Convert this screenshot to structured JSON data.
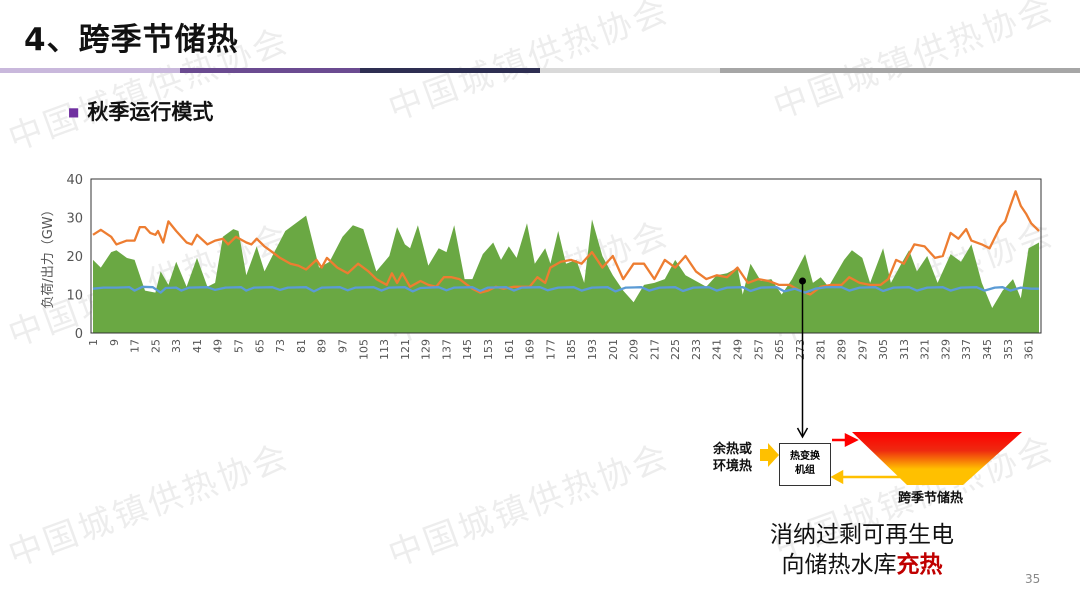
{
  "header": {
    "title": "4、跨季节储热",
    "subtitle": "秋季运行模式",
    "bullet_icon": "square-bullet-icon"
  },
  "watermark": "中国城镇供热协会",
  "colors": {
    "green": "#6aa843",
    "orange": "#ed7d31",
    "blue": "#5b9bd5",
    "accent_purple": "#7030a0",
    "highlight_red": "#c00000"
  },
  "chart_data": {
    "type": "area",
    "title": "",
    "xlabel": "",
    "ylabel": "负荷/出力（GW）",
    "ylim": [
      0,
      40
    ],
    "yticks": [
      0,
      10,
      20,
      30,
      40
    ],
    "xlim": [
      1,
      365
    ],
    "xticks": [
      1,
      9,
      17,
      25,
      33,
      41,
      49,
      57,
      65,
      73,
      81,
      89,
      97,
      105,
      113,
      121,
      129,
      137,
      145,
      153,
      161,
      169,
      177,
      185,
      193,
      201,
      209,
      217,
      225,
      233,
      241,
      249,
      257,
      265,
      273,
      281,
      289,
      297,
      305,
      313,
      321,
      329,
      337,
      345,
      353,
      361
    ],
    "grid": false,
    "series": [
      {
        "name": "green-area",
        "type": "area",
        "color": "#6aa843",
        "points": [
          [
            1,
            19
          ],
          [
            4,
            17
          ],
          [
            8,
            21
          ],
          [
            10,
            21.5
          ],
          [
            14,
            19.5
          ],
          [
            17,
            19
          ],
          [
            19,
            15
          ],
          [
            21,
            11
          ],
          [
            25,
            10.5
          ],
          [
            27,
            16
          ],
          [
            30,
            12.5
          ],
          [
            33,
            18.5
          ],
          [
            37,
            12
          ],
          [
            41,
            19.5
          ],
          [
            45,
            12
          ],
          [
            48,
            13
          ],
          [
            51,
            25
          ],
          [
            55,
            27
          ],
          [
            57,
            26.5
          ],
          [
            60,
            15
          ],
          [
            64,
            22.5
          ],
          [
            67,
            16
          ],
          [
            70,
            20
          ],
          [
            75,
            26.5
          ],
          [
            80,
            29
          ],
          [
            83,
            30.5
          ],
          [
            88,
            17
          ],
          [
            92,
            18.5
          ],
          [
            97,
            25
          ],
          [
            101,
            28
          ],
          [
            105,
            27
          ],
          [
            110,
            16
          ],
          [
            115,
            20
          ],
          [
            118,
            27.5
          ],
          [
            121,
            23
          ],
          [
            123,
            22
          ],
          [
            126,
            28
          ],
          [
            130,
            17.5
          ],
          [
            134,
            22
          ],
          [
            137,
            21
          ],
          [
            140,
            28
          ],
          [
            144,
            14
          ],
          [
            147,
            14
          ],
          [
            151,
            20.5
          ],
          [
            155,
            23.5
          ],
          [
            158,
            19
          ],
          [
            161,
            22.5
          ],
          [
            164,
            19.5
          ],
          [
            168,
            28.5
          ],
          [
            171,
            18
          ],
          [
            175,
            22
          ],
          [
            177,
            18
          ],
          [
            180,
            26.5
          ],
          [
            183,
            18
          ],
          [
            187,
            19
          ],
          [
            190,
            13
          ],
          [
            193,
            29.5
          ],
          [
            197,
            20
          ],
          [
            201,
            15
          ],
          [
            205,
            11
          ],
          [
            209,
            8
          ],
          [
            213,
            12.5
          ],
          [
            217,
            13
          ],
          [
            221,
            14
          ],
          [
            225,
            19
          ],
          [
            229,
            15
          ],
          [
            233,
            13.5
          ],
          [
            237,
            12
          ],
          [
            241,
            15
          ],
          [
            245,
            15.5
          ],
          [
            249,
            17
          ],
          [
            251,
            10
          ],
          [
            254,
            18
          ],
          [
            258,
            13.5
          ],
          [
            262,
            14
          ],
          [
            266,
            10
          ],
          [
            270,
            14
          ],
          [
            275,
            20.5
          ],
          [
            278,
            13
          ],
          [
            281,
            14.5
          ],
          [
            284,
            12
          ],
          [
            290,
            19
          ],
          [
            293,
            21.5
          ],
          [
            297,
            19.5
          ],
          [
            300,
            13
          ],
          [
            305,
            22
          ],
          [
            308,
            13
          ],
          [
            312,
            18
          ],
          [
            315,
            21.5
          ],
          [
            318,
            16
          ],
          [
            322,
            20
          ],
          [
            326,
            13
          ],
          [
            331,
            20.5
          ],
          [
            335,
            18.5
          ],
          [
            339,
            23
          ],
          [
            343,
            13
          ],
          [
            347,
            6.5
          ],
          [
            351,
            11
          ],
          [
            355,
            14
          ],
          [
            358,
            9
          ],
          [
            361,
            22
          ],
          [
            365,
            23.5
          ]
        ]
      },
      {
        "name": "orange-line",
        "type": "line",
        "color": "#ed7d31",
        "points": [
          [
            1,
            25.5
          ],
          [
            4,
            26.8
          ],
          [
            8,
            25
          ],
          [
            10,
            23
          ],
          [
            14,
            24
          ],
          [
            17,
            24
          ],
          [
            19,
            27.5
          ],
          [
            21,
            27.5
          ],
          [
            23,
            26
          ],
          [
            25,
            25.5
          ],
          [
            26,
            26.5
          ],
          [
            28,
            23.5
          ],
          [
            30,
            29
          ],
          [
            33,
            26.5
          ],
          [
            37,
            23.5
          ],
          [
            39,
            23
          ],
          [
            41,
            25.5
          ],
          [
            45,
            23
          ],
          [
            48,
            24
          ],
          [
            51,
            24.5
          ],
          [
            53,
            23
          ],
          [
            56,
            25
          ],
          [
            60,
            23.5
          ],
          [
            62,
            23
          ],
          [
            64,
            24.5
          ],
          [
            67,
            22.5
          ],
          [
            70,
            21
          ],
          [
            73,
            19.5
          ],
          [
            77,
            18
          ],
          [
            80,
            17.5
          ],
          [
            83,
            16.5
          ],
          [
            87,
            19
          ],
          [
            89,
            17
          ],
          [
            91,
            19.5
          ],
          [
            95,
            17
          ],
          [
            99,
            15.5
          ],
          [
            103,
            18
          ],
          [
            107,
            16
          ],
          [
            110,
            14
          ],
          [
            114,
            12.5
          ],
          [
            116,
            15.5
          ],
          [
            118,
            13
          ],
          [
            120,
            15.5
          ],
          [
            123,
            12
          ],
          [
            127,
            13.5
          ],
          [
            130,
            12.5
          ],
          [
            133,
            12
          ],
          [
            136,
            14.5
          ],
          [
            139,
            14.5
          ],
          [
            142,
            14
          ],
          [
            145,
            12.5
          ],
          [
            147,
            11.5
          ],
          [
            150,
            10.5
          ],
          [
            153,
            11
          ],
          [
            156,
            12
          ],
          [
            159,
            11.5
          ],
          [
            163,
            12
          ],
          [
            166,
            12
          ],
          [
            169,
            12
          ],
          [
            172,
            14.5
          ],
          [
            175,
            13
          ],
          [
            177,
            17
          ],
          [
            181,
            18.5
          ],
          [
            185,
            19
          ],
          [
            189,
            18
          ],
          [
            193,
            21
          ],
          [
            197,
            17
          ],
          [
            201,
            20
          ],
          [
            205,
            14
          ],
          [
            209,
            18
          ],
          [
            213,
            18
          ],
          [
            217,
            14
          ],
          [
            221,
            19
          ],
          [
            225,
            17
          ],
          [
            229,
            20
          ],
          [
            233,
            16
          ],
          [
            237,
            14
          ],
          [
            241,
            15
          ],
          [
            245,
            14.5
          ],
          [
            249,
            17
          ],
          [
            253,
            13
          ],
          [
            257,
            14
          ],
          [
            261,
            13.5
          ],
          [
            265,
            12.5
          ],
          [
            269,
            12.5
          ],
          [
            273,
            11
          ],
          [
            277,
            10
          ],
          [
            281,
            12
          ],
          [
            285,
            12.5
          ],
          [
            289,
            12.5
          ],
          [
            292,
            14.5
          ],
          [
            296,
            13
          ],
          [
            300,
            12.5
          ],
          [
            304,
            12.5
          ],
          [
            307,
            14
          ],
          [
            310,
            19
          ],
          [
            313,
            18
          ],
          [
            317,
            23
          ],
          [
            321,
            22.5
          ],
          [
            325,
            19.5
          ],
          [
            328,
            20
          ],
          [
            331,
            26
          ],
          [
            334,
            24.5
          ],
          [
            337,
            27
          ],
          [
            339,
            24
          ],
          [
            343,
            23
          ],
          [
            346,
            22
          ],
          [
            350,
            27.5
          ],
          [
            352,
            29
          ],
          [
            354,
            33
          ],
          [
            356,
            36.8
          ],
          [
            358,
            33
          ],
          [
            360,
            31
          ],
          [
            362,
            28.5
          ],
          [
            365,
            26.5
          ]
        ]
      },
      {
        "name": "blue-line",
        "type": "line",
        "color": "#5b9bd5",
        "points": [
          [
            1,
            11.5
          ],
          [
            5,
            11.8
          ],
          [
            10,
            11.8
          ],
          [
            15,
            11.9
          ],
          [
            17,
            11
          ],
          [
            20,
            12
          ],
          [
            24,
            11.9
          ],
          [
            27,
            10.5
          ],
          [
            29,
            11.7
          ],
          [
            33,
            11.8
          ],
          [
            35,
            11
          ],
          [
            38,
            11.8
          ],
          [
            45,
            11.9
          ],
          [
            48,
            11.2
          ],
          [
            52,
            11.8
          ],
          [
            58,
            11.9
          ],
          [
            60,
            11
          ],
          [
            63,
            11.8
          ],
          [
            70,
            11.9
          ],
          [
            73,
            11.2
          ],
          [
            76,
            11.8
          ],
          [
            83,
            11.9
          ],
          [
            86,
            10.8
          ],
          [
            89,
            11.8
          ],
          [
            96,
            11.9
          ],
          [
            99,
            11.1
          ],
          [
            102,
            11.8
          ],
          [
            109,
            11.9
          ],
          [
            112,
            11
          ],
          [
            115,
            11.8
          ],
          [
            121,
            11.9
          ],
          [
            124,
            10.8
          ],
          [
            127,
            11.7
          ],
          [
            134,
            11.9
          ],
          [
            137,
            11.1
          ],
          [
            140,
            11.8
          ],
          [
            147,
            11.9
          ],
          [
            150,
            10.9
          ],
          [
            153,
            11.8
          ],
          [
            160,
            11.9
          ],
          [
            163,
            11
          ],
          [
            166,
            11.8
          ],
          [
            173,
            11.9
          ],
          [
            176,
            11.1
          ],
          [
            180,
            11.8
          ],
          [
            186,
            11.9
          ],
          [
            189,
            11
          ],
          [
            193,
            11.8
          ],
          [
            199,
            11.9
          ],
          [
            202,
            10.8
          ],
          [
            206,
            11.8
          ],
          [
            212,
            11.9
          ],
          [
            215,
            11
          ],
          [
            219,
            11.8
          ],
          [
            225,
            11.9
          ],
          [
            228,
            10.9
          ],
          [
            232,
            11.8
          ],
          [
            238,
            11.9
          ],
          [
            241,
            11
          ],
          [
            245,
            11.8
          ],
          [
            251,
            11.9
          ],
          [
            254,
            10.9
          ],
          [
            258,
            11.8
          ],
          [
            264,
            11.9
          ],
          [
            267,
            10.8
          ],
          [
            271,
            11.5
          ],
          [
            275,
            10.5
          ],
          [
            279,
            11.5
          ],
          [
            283,
            11.9
          ],
          [
            289,
            11.9
          ],
          [
            292,
            11
          ],
          [
            296,
            11.8
          ],
          [
            302,
            11.9
          ],
          [
            305,
            10.9
          ],
          [
            309,
            11.8
          ],
          [
            315,
            11.9
          ],
          [
            318,
            11
          ],
          [
            322,
            11.8
          ],
          [
            328,
            11.9
          ],
          [
            331,
            11
          ],
          [
            335,
            11.8
          ],
          [
            341,
            11.9
          ],
          [
            344,
            11
          ],
          [
            348,
            11.8
          ],
          [
            351,
            11.9
          ],
          [
            354,
            11
          ],
          [
            358,
            11.8
          ],
          [
            362,
            11.5
          ],
          [
            365,
            11.5
          ]
        ]
      }
    ],
    "annotation_day": 274
  },
  "diagram": {
    "heat_source": [
      "余热或",
      "环境热"
    ],
    "exchanger": [
      "热变换",
      "机组"
    ],
    "storage_label": "跨季节储热",
    "caption_line1": "消纳过剩可再生电",
    "caption_line2_prefix": "向储热水库",
    "caption_line2_highlight": "充热"
  },
  "page_number": "35"
}
